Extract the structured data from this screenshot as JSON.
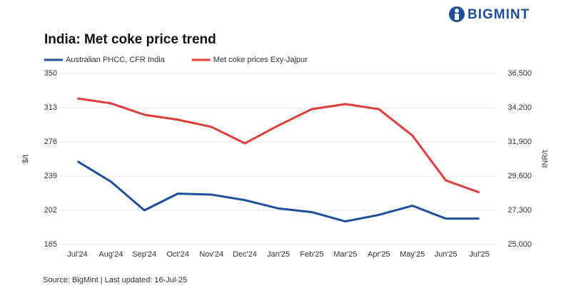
{
  "brand": "BIGMINT",
  "chart_data": {
    "type": "line",
    "title": "India: Met coke price trend",
    "categories": [
      "Jul'24",
      "Aug'24",
      "Sep'24",
      "Oct'24",
      "Nov'24",
      "Dec'24",
      "Jan'25",
      "Feb'25",
      "Mar'25",
      "Apr'25",
      "May'25",
      "Jun'25",
      "Jul'25"
    ],
    "series": [
      {
        "name": "Australian PHCC, CFR India",
        "color": "#1f4e9c",
        "values": [
          255,
          233,
          202,
          220,
          219,
          213,
          204,
          200,
          190,
          197,
          207,
          193,
          193
        ]
      },
      {
        "name": "Met coke prices Exy-Jajpur",
        "color": "#e03c3a",
        "axis": "y2",
        "values": [
          34820,
          34490,
          33720,
          33390,
          32910,
          31800,
          33000,
          34100,
          34440,
          34100,
          32330,
          29310,
          28500
        ]
      }
    ],
    "ylabel": "$/t",
    "y2label": "INR/t",
    "ylim": [
      165,
      350
    ],
    "yticks": [
      165,
      202,
      239,
      276,
      313,
      350
    ],
    "y2lim": [
      25000,
      36500
    ],
    "y2ticks": [
      {
        "value": 25000,
        "label": "25,000"
      },
      {
        "value": 27300,
        "label": "27,300"
      },
      {
        "value": 29600,
        "label": "29,600"
      },
      {
        "value": 31900,
        "label": "31,900"
      },
      {
        "value": 34200,
        "label": "34,200"
      },
      {
        "value": 36500,
        "label": "36,500"
      }
    ],
    "grid": true,
    "legend": "top-left",
    "source": "Source: BigMint | Last updated: 16-Jul-25"
  }
}
